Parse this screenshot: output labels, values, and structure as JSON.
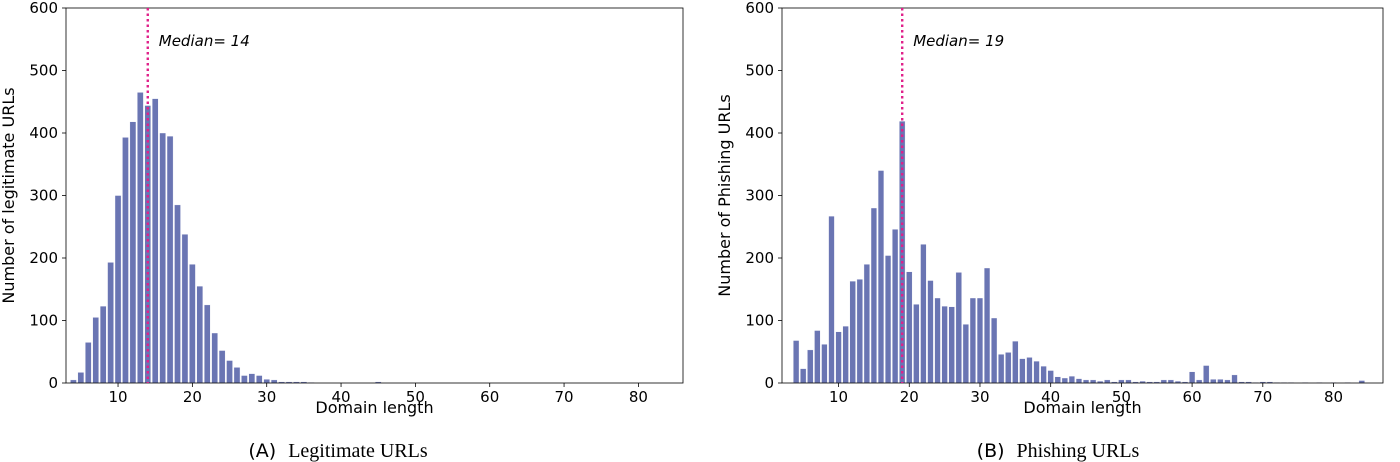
{
  "chart_data": [
    {
      "type": "bar",
      "panel": "A",
      "caption_letter": "(A)",
      "caption_text": "Legitimate URLs",
      "xlabel": "Domain length",
      "ylabel": "Number of legitimate URLs",
      "xlim": [
        3,
        86
      ],
      "ylim": [
        0,
        600
      ],
      "xticks": [
        10,
        20,
        30,
        40,
        50,
        60,
        70,
        80
      ],
      "yticks": [
        0,
        100,
        200,
        300,
        400,
        500,
        600
      ],
      "bar_color": "#6a75b3",
      "median_color": "#e0218a",
      "median": 14,
      "median_label": "Median= 14",
      "x": [
        4,
        5,
        6,
        7,
        8,
        9,
        10,
        11,
        12,
        13,
        14,
        15,
        16,
        17,
        18,
        19,
        20,
        21,
        22,
        23,
        24,
        25,
        26,
        27,
        28,
        29,
        30,
        31,
        32,
        33,
        34,
        35,
        36,
        45
      ],
      "values": [
        5,
        17,
        65,
        105,
        123,
        193,
        300,
        393,
        418,
        465,
        444,
        455,
        400,
        395,
        285,
        238,
        190,
        155,
        125,
        80,
        52,
        36,
        25,
        12,
        15,
        12,
        6,
        5,
        2,
        2,
        2,
        2,
        1,
        2
      ]
    },
    {
      "type": "bar",
      "panel": "B",
      "caption_letter": "(B)",
      "caption_text": "Phishing URLs",
      "xlabel": "Domain length",
      "ylabel": "Number of Phishing URLs",
      "xlim": [
        2,
        87
      ],
      "ylim": [
        0,
        600
      ],
      "xticks": [
        10,
        20,
        30,
        40,
        50,
        60,
        70,
        80
      ],
      "yticks": [
        0,
        100,
        200,
        300,
        400,
        500,
        600
      ],
      "bar_color": "#6a75b3",
      "median_color": "#e0218a",
      "median": 19,
      "median_label": "Median= 19",
      "x": [
        4,
        5,
        6,
        7,
        8,
        9,
        10,
        11,
        12,
        13,
        14,
        15,
        16,
        17,
        18,
        19,
        20,
        21,
        22,
        23,
        24,
        25,
        26,
        27,
        28,
        29,
        30,
        31,
        32,
        33,
        34,
        35,
        36,
        37,
        38,
        39,
        40,
        41,
        42,
        43,
        44,
        45,
        46,
        47,
        48,
        49,
        50,
        51,
        52,
        53,
        54,
        55,
        56,
        57,
        58,
        59,
        60,
        61,
        62,
        63,
        64,
        65,
        66,
        67,
        68,
        69,
        70,
        71,
        72,
        73,
        74,
        76,
        78,
        80,
        82,
        84
      ],
      "values": [
        68,
        23,
        53,
        84,
        62,
        267,
        82,
        91,
        163,
        166,
        190,
        280,
        340,
        204,
        246,
        419,
        178,
        126,
        222,
        164,
        136,
        123,
        122,
        177,
        94,
        136,
        136,
        184,
        104,
        46,
        49,
        67,
        39,
        41,
        35,
        27,
        20,
        10,
        8,
        11,
        7,
        5,
        5,
        3,
        5,
        2,
        5,
        5,
        2,
        3,
        2,
        2,
        5,
        5,
        3,
        2,
        18,
        5,
        28,
        6,
        6,
        5,
        13,
        2,
        2,
        1,
        2,
        2,
        1,
        1,
        1,
        1,
        1,
        1,
        1,
        4
      ]
    }
  ]
}
